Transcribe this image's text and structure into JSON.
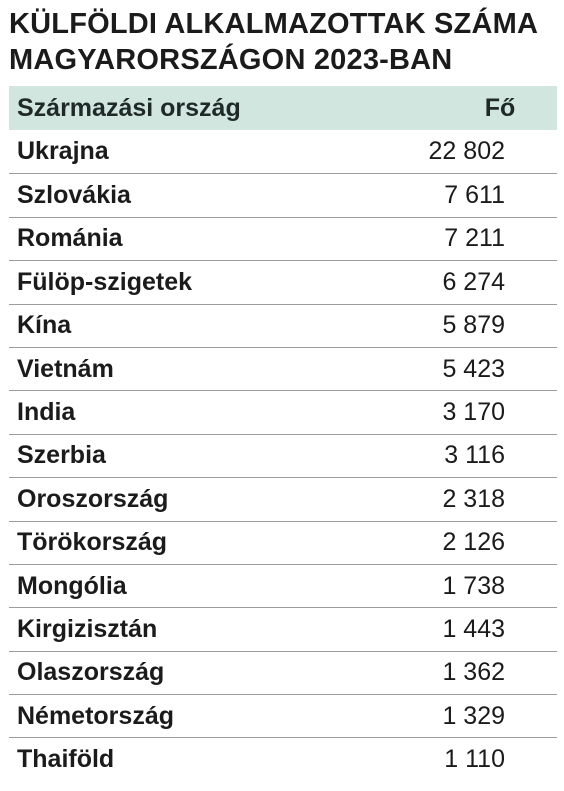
{
  "title_lines": [
    "KÜLFÖLDI ALKALMAZOTTAK SZÁMA",
    "MAGYARORSZÁGON 2023-BAN"
  ],
  "colors": {
    "header_bg": "#d1e6df",
    "text": "#1b1b1b",
    "divider": "#9c9c9c"
  },
  "chart_data": {
    "type": "table",
    "title": "KÜLFÖLDI ALKALMAZOTTAK SZÁMA MAGYARORSZÁGON 2023-BAN",
    "columns": [
      "Származási ország",
      "Fő"
    ],
    "rows": [
      {
        "country": "Ukrajna",
        "value": 22802,
        "display": "22 802"
      },
      {
        "country": "Szlovákia",
        "value": 7611,
        "display": "7 611"
      },
      {
        "country": "Románia",
        "value": 7211,
        "display": "7 211"
      },
      {
        "country": "Fülöp-szigetek",
        "value": 6274,
        "display": "6 274"
      },
      {
        "country": "Kína",
        "value": 5879,
        "display": "5 879"
      },
      {
        "country": "Vietnám",
        "value": 5423,
        "display": "5 423"
      },
      {
        "country": "India",
        "value": 3170,
        "display": "3 170"
      },
      {
        "country": "Szerbia",
        "value": 3116,
        "display": "3 116"
      },
      {
        "country": "Oroszország",
        "value": 2318,
        "display": "2 318"
      },
      {
        "country": "Törökország",
        "value": 2126,
        "display": "2 126"
      },
      {
        "country": "Mongólia",
        "value": 1738,
        "display": "1 738"
      },
      {
        "country": "Kirgizisztán",
        "value": 1443,
        "display": "1 443"
      },
      {
        "country": "Olaszország",
        "value": 1362,
        "display": "1 362"
      },
      {
        "country": "Németország",
        "value": 1329,
        "display": "1 329"
      },
      {
        "country": "Thaiföld",
        "value": 1110,
        "display": "1 110"
      }
    ]
  }
}
